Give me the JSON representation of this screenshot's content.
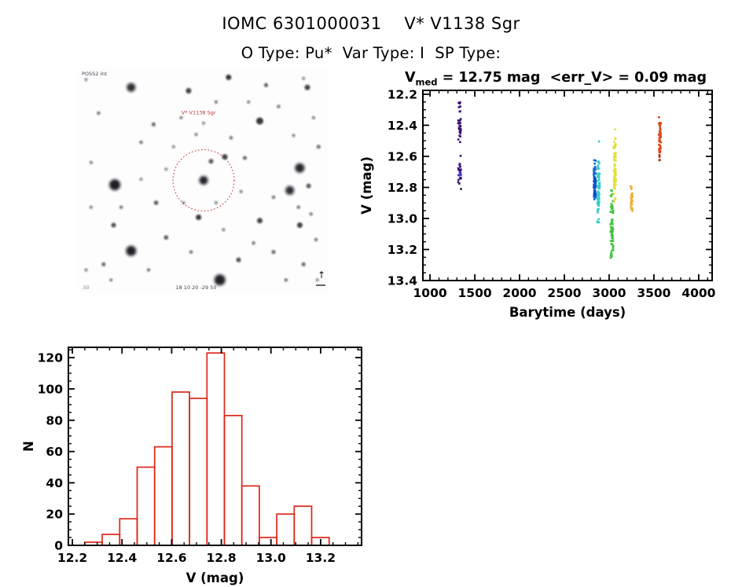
{
  "page": {
    "title": "IOMC 6301000031    V* V1138 Sgr",
    "subtitle": "O Type: Pu*  Var Type: I  SP Type:"
  },
  "finder": {
    "label": "V* V1138 Sgr",
    "survey_text": "POSS2 int",
    "coords_text": "18 10 20 -29 50",
    "corner_mark": ".50",
    "compass_arrow": "↑",
    "circle_color": "#cc2222",
    "star_color": "#12121a",
    "stars": [
      [
        0.5,
        0.5,
        5.5,
        0.95,
        1
      ],
      [
        0.145,
        0.52,
        7.0,
        0.97,
        1
      ],
      [
        0.21,
        0.815,
        6.5,
        0.95
      ],
      [
        0.565,
        0.945,
        7.0,
        0.95
      ],
      [
        0.885,
        0.445,
        6.0,
        0.93
      ],
      [
        0.845,
        0.545,
        5.5,
        0.9
      ],
      [
        0.21,
        0.085,
        5.5,
        0.9
      ],
      [
        0.725,
        0.235,
        4.5,
        0.85
      ],
      [
        0.44,
        0.1,
        3.5,
        0.8
      ],
      [
        0.6,
        0.04,
        3.5,
        0.85
      ],
      [
        0.915,
        0.085,
        3.5,
        0.8
      ],
      [
        0.53,
        0.415,
        3.0,
        0.7
      ],
      [
        0.585,
        0.395,
        3.5,
        0.8
      ],
      [
        0.48,
        0.665,
        3.5,
        0.85
      ],
      [
        0.725,
        0.68,
        3.5,
        0.8
      ],
      [
        0.885,
        0.7,
        3.5,
        0.8
      ],
      [
        0.14,
        0.7,
        3.0,
        0.75
      ],
      [
        0.31,
        0.6,
        2.8,
        0.7
      ],
      [
        0.665,
        0.4,
        2.5,
        0.65
      ],
      [
        0.92,
        0.525,
        3.0,
        0.7
      ],
      [
        0.35,
        0.755,
        2.8,
        0.7
      ],
      [
        0.64,
        0.855,
        3.0,
        0.75
      ],
      [
        0.3,
        0.25,
        2.5,
        0.65
      ],
      [
        0.61,
        0.31,
        2.2,
        0.6
      ],
      [
        0.75,
        0.075,
        2.5,
        0.7
      ],
      [
        0.08,
        0.2,
        2.2,
        0.6
      ],
      [
        0.25,
        0.33,
        2.2,
        0.6
      ],
      [
        0.41,
        0.22,
        2.0,
        0.55
      ],
      [
        0.55,
        0.15,
        2.0,
        0.6
      ],
      [
        0.68,
        0.15,
        2.0,
        0.55
      ],
      [
        0.8,
        0.17,
        2.2,
        0.6
      ],
      [
        0.05,
        0.42,
        2.0,
        0.55
      ],
      [
        0.35,
        0.45,
        2.0,
        0.5
      ],
      [
        0.65,
        0.55,
        2.0,
        0.55
      ],
      [
        0.78,
        0.575,
        2.2,
        0.6
      ],
      [
        0.05,
        0.62,
        2.0,
        0.55
      ],
      [
        0.17,
        0.62,
        2.2,
        0.6
      ],
      [
        0.42,
        0.6,
        2.0,
        0.5
      ],
      [
        0.55,
        0.6,
        2.0,
        0.55
      ],
      [
        0.88,
        0.62,
        2.2,
        0.6
      ],
      [
        0.1,
        0.875,
        2.5,
        0.65
      ],
      [
        0.28,
        0.9,
        2.2,
        0.6
      ],
      [
        0.45,
        0.82,
        2.2,
        0.6
      ],
      [
        0.78,
        0.82,
        2.5,
        0.65
      ],
      [
        0.9,
        0.875,
        2.5,
        0.65
      ],
      [
        0.95,
        0.765,
        2.2,
        0.6
      ],
      [
        0.38,
        0.35,
        2.0,
        0.5
      ],
      [
        0.47,
        0.295,
        2.0,
        0.55
      ],
      [
        0.86,
        0.3,
        2.0,
        0.55
      ],
      [
        0.94,
        0.22,
        2.0,
        0.55
      ],
      [
        0.7,
        0.78,
        2.2,
        0.6
      ],
      [
        0.58,
        0.72,
        2.0,
        0.55
      ],
      [
        0.25,
        0.495,
        2.0,
        0.5
      ],
      [
        0.03,
        0.9,
        2.0,
        0.55
      ],
      [
        0.13,
        0.945,
        2.0,
        0.55
      ],
      [
        0.83,
        0.945,
        2.2,
        0.6
      ],
      [
        0.955,
        0.945,
        2.0,
        0.5
      ],
      [
        0.5,
        0.245,
        2.0,
        0.5
      ],
      [
        0.9,
        0.045,
        2.0,
        0.5
      ],
      [
        0.03,
        0.05,
        2.0,
        0.5
      ],
      [
        0.96,
        0.35,
        2.5,
        0.6
      ],
      [
        0.93,
        0.65,
        2.2,
        0.55
      ]
    ]
  },
  "chart_data": [
    {
      "type": "scatter",
      "title": "V_med = 12.75 mag <err_V> = 0.09 mag",
      "title_parts": {
        "prefix": "V",
        "sub": "med",
        "rest": " = 12.75 mag  <err_V> = 0.09 mag"
      },
      "v_med": 12.75,
      "err_v_mean": 0.09,
      "xlabel": "Barytime (days)",
      "ylabel": "V (mag)",
      "xlim": [
        920,
        4150
      ],
      "ylim": [
        12.175,
        13.4
      ],
      "y_axis_inverted": true,
      "x_ticks": [
        1000,
        1500,
        2000,
        2500,
        3000,
        3500,
        4000
      ],
      "x_minor_step": 100,
      "y_ticks": [
        12.2,
        12.4,
        12.6,
        12.8,
        13.0,
        13.2,
        13.4
      ],
      "y_minor_step": 0.05,
      "grid": false,
      "clusters": [
        {
          "name": "epoch-1330",
          "color": "#38106e",
          "x": 1330,
          "jx": 16,
          "segments": [
            {
              "v0": 12.25,
              "v1": 12.31,
              "n": 6
            },
            {
              "v0": 12.31,
              "v1": 12.47,
              "n": 24
            },
            {
              "v0": 12.47,
              "v1": 12.51,
              "n": 3
            },
            {
              "v0": 12.59,
              "v1": 12.61,
              "n": 1
            },
            {
              "v0": 12.64,
              "v1": 12.67,
              "n": 3
            },
            {
              "v0": 12.66,
              "v1": 12.7,
              "n": 6
            },
            {
              "v0": 12.69,
              "v1": 12.74,
              "n": 8,
              "color": "#4326c4"
            },
            {
              "v0": 12.74,
              "v1": 12.78,
              "n": 5
            },
            {
              "v0": 12.8,
              "v1": 12.82,
              "n": 1
            }
          ]
        },
        {
          "name": "epoch-2840",
          "color": "#1668d8",
          "x": 2840,
          "jx": 12,
          "segments": [
            {
              "v0": 12.62,
              "v1": 12.68,
              "n": 6
            },
            {
              "v0": 12.68,
              "v1": 12.88,
              "n": 60
            },
            {
              "v0": 12.73,
              "v1": 12.86,
              "n": 25,
              "color": "#0b4ecb"
            }
          ]
        },
        {
          "name": "epoch-2880",
          "color": "#37cdc6",
          "x": 2882,
          "jx": 14,
          "segments": [
            {
              "v0": 12.5,
              "v1": 12.52,
              "n": 1
            },
            {
              "v0": 12.62,
              "v1": 12.7,
              "n": 8
            },
            {
              "v0": 12.7,
              "v1": 12.96,
              "n": 55
            },
            {
              "v0": 12.96,
              "v1": 13.03,
              "n": 5
            }
          ]
        },
        {
          "name": "epoch-3030",
          "color": "#3fc43f",
          "x": 3030,
          "jx": 16,
          "segments": [
            {
              "v0": 12.81,
              "v1": 12.91,
              "n": 7
            },
            {
              "v0": 12.91,
              "v1": 12.97,
              "n": 12
            },
            {
              "v0": 13.0,
              "v1": 13.26,
              "n": 42
            }
          ]
        },
        {
          "name": "epoch-3065",
          "color": "#e3e038",
          "x": 3064,
          "jx": 12,
          "segments": [
            {
              "v0": 12.41,
              "v1": 12.43,
              "n": 1
            },
            {
              "v0": 12.48,
              "v1": 12.63,
              "n": 28
            },
            {
              "v0": 12.63,
              "v1": 12.82,
              "n": 35
            },
            {
              "v0": 12.84,
              "v1": 12.9,
              "n": 4
            }
          ]
        },
        {
          "name": "epoch-3250",
          "color": "#f0ac30",
          "x": 3250,
          "jx": 10,
          "segments": [
            {
              "v0": 12.78,
              "v1": 12.96,
              "n": 26
            }
          ]
        },
        {
          "name": "epoch-3570",
          "color": "#dc4a18",
          "x": 3568,
          "jx": 12,
          "segments": [
            {
              "v0": 12.33,
              "v1": 12.35,
              "n": 1
            },
            {
              "v0": 12.38,
              "v1": 12.58,
              "n": 40
            },
            {
              "v0": 12.58,
              "v1": 12.63,
              "n": 5,
              "color": "#a83212"
            }
          ]
        }
      ]
    },
    {
      "type": "bar",
      "title": "",
      "xlabel": "V (mag)",
      "ylabel": "N",
      "xlim": [
        12.184,
        13.365
      ],
      "ylim": [
        0,
        126.6
      ],
      "bin_start": 12.25,
      "bin_width": 0.0703,
      "values": [
        2,
        7,
        17,
        50,
        63,
        98,
        94,
        123,
        83,
        38,
        5,
        20,
        25,
        5
      ],
      "x_ticks": [
        12.2,
        12.4,
        12.6,
        12.8,
        13.0,
        13.2
      ],
      "x_minor_step": 0.05,
      "y_ticks": [
        0,
        20,
        40,
        60,
        80,
        100,
        120
      ],
      "y_minor_step": 5,
      "bar_color": "#dd2618",
      "grid": false
    }
  ]
}
